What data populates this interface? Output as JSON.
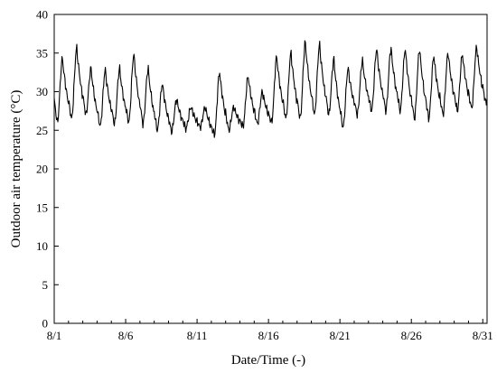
{
  "chart_data": {
    "type": "line",
    "title": "",
    "xlabel": "Date/Time (-)",
    "ylabel": "Outdoor air temperature (°C)",
    "ylim": [
      0,
      40
    ],
    "yticks": [
      0,
      5,
      10,
      15,
      20,
      25,
      30,
      35,
      40
    ],
    "xlim_days": [
      0,
      30.3
    ],
    "xticks": [
      {
        "label": "8/1",
        "day": 0
      },
      {
        "label": "8/6",
        "day": 5
      },
      {
        "label": "8/11",
        "day": 10
      },
      {
        "label": "8/16",
        "day": 15
      },
      {
        "label": "8/21",
        "day": 20
      },
      {
        "label": "8/26",
        "day": 25
      },
      {
        "label": "8/31",
        "day": 30
      }
    ],
    "grid": false,
    "legend": "none",
    "series": [
      {
        "x_unit": "days since 8/1 00:00",
        "daily_min_max": [
          [
            26.0,
            34.3
          ],
          [
            26.5,
            35.7
          ],
          [
            27.0,
            33.0
          ],
          [
            25.5,
            32.8
          ],
          [
            25.8,
            33.0
          ],
          [
            26.0,
            34.8
          ],
          [
            25.8,
            33.0
          ],
          [
            25.0,
            31.0
          ],
          [
            24.8,
            29.0
          ],
          [
            25.2,
            28.0
          ],
          [
            25.4,
            28.0
          ],
          [
            24.4,
            32.5
          ],
          [
            25.0,
            28.0
          ],
          [
            25.5,
            32.0
          ],
          [
            25.8,
            30.0
          ],
          [
            26.0,
            34.5
          ],
          [
            26.5,
            35.0
          ],
          [
            26.5,
            36.4
          ],
          [
            27.0,
            36.1
          ],
          [
            27.0,
            34.2
          ],
          [
            25.3,
            33.0
          ],
          [
            27.0,
            34.0
          ],
          [
            27.5,
            35.5
          ],
          [
            27.5,
            35.6
          ],
          [
            27.5,
            35.5
          ],
          [
            26.5,
            35.5
          ],
          [
            26.5,
            34.6
          ],
          [
            27.0,
            35.0
          ],
          [
            27.5,
            34.8
          ],
          [
            27.8,
            35.8
          ],
          [
            28.5,
            34.0
          ]
        ]
      }
    ]
  }
}
